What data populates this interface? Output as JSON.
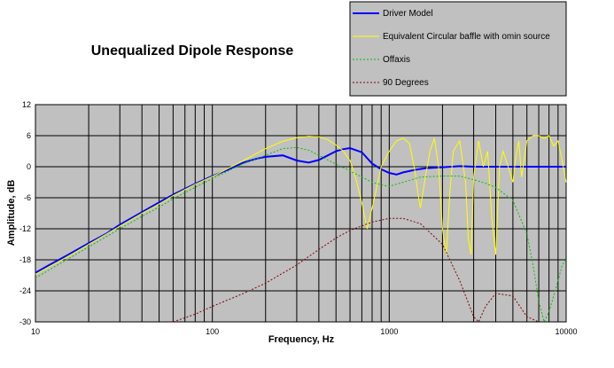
{
  "chart_data": {
    "type": "line",
    "title": "Unequalized Dipole Response",
    "xlabel": "Frequency, Hz",
    "ylabel": "Amplitude, dB",
    "xscale": "log",
    "xlim": [
      10,
      10000
    ],
    "ylim": [
      -30,
      12
    ],
    "x_ticks": [
      10,
      100,
      1000,
      10000
    ],
    "x_tick_labels": [
      "10",
      "100",
      "1000",
      "10000"
    ],
    "y_ticks": [
      12,
      6,
      0,
      -6,
      -12,
      -18,
      -24,
      -30
    ],
    "y_tick_labels": [
      "12",
      "6",
      "0",
      "-6",
      "-12",
      "-18",
      "-24",
      "-30"
    ],
    "grid": true,
    "legend_position": "top-right",
    "background": "#c0c0c0",
    "series": [
      {
        "name": "Driver Model",
        "color": "#0000ff",
        "style": "solid",
        "points": [
          [
            10,
            -20.5
          ],
          [
            12,
            -19
          ],
          [
            15,
            -17.2
          ],
          [
            20,
            -14.8
          ],
          [
            25,
            -13
          ],
          [
            30,
            -11.2
          ],
          [
            40,
            -8.8
          ],
          [
            50,
            -6.9
          ],
          [
            60,
            -5.4
          ],
          [
            80,
            -3.3
          ],
          [
            100,
            -1.8
          ],
          [
            120,
            -0.7
          ],
          [
            150,
            0.8
          ],
          [
            180,
            1.6
          ],
          [
            200,
            1.9
          ],
          [
            250,
            2.2
          ],
          [
            300,
            1.2
          ],
          [
            350,
            0.8
          ],
          [
            400,
            1.3
          ],
          [
            450,
            2.2
          ],
          [
            500,
            3
          ],
          [
            550,
            3.4
          ],
          [
            600,
            3.6
          ],
          [
            700,
            2.8
          ],
          [
            800,
            0.6
          ],
          [
            900,
            -0.5
          ],
          [
            1000,
            -1.2
          ],
          [
            1100,
            -1.5
          ],
          [
            1200,
            -1.1
          ],
          [
            1400,
            -0.6
          ],
          [
            1600,
            -0.3
          ],
          [
            2000,
            -0.1
          ],
          [
            2500,
            0.1
          ],
          [
            3000,
            0
          ],
          [
            4000,
            0
          ],
          [
            5000,
            0
          ],
          [
            6000,
            0
          ],
          [
            8000,
            0
          ],
          [
            10000,
            0
          ]
        ]
      },
      {
        "name": "Equivalent Circular baffle with omin source",
        "color": "#ffff00",
        "style": "solid",
        "points": [
          [
            10,
            -20.8
          ],
          [
            15,
            -17.5
          ],
          [
            20,
            -15
          ],
          [
            30,
            -11.5
          ],
          [
            40,
            -9
          ],
          [
            50,
            -7.2
          ],
          [
            60,
            -5.6
          ],
          [
            80,
            -3.4
          ],
          [
            100,
            -1.9
          ],
          [
            150,
            1.2
          ],
          [
            200,
            3.5
          ],
          [
            250,
            4.9
          ],
          [
            300,
            5.6
          ],
          [
            350,
            5.9
          ],
          [
            400,
            5.8
          ],
          [
            450,
            5.2
          ],
          [
            500,
            4.2
          ],
          [
            550,
            3
          ],
          [
            600,
            1.2
          ],
          [
            650,
            -2.5
          ],
          [
            700,
            -7
          ],
          [
            750,
            -12
          ],
          [
            800,
            -8
          ],
          [
            850,
            -4
          ],
          [
            900,
            0
          ],
          [
            1000,
            3
          ],
          [
            1100,
            5
          ],
          [
            1200,
            5.5
          ],
          [
            1300,
            4.5
          ],
          [
            1400,
            -1
          ],
          [
            1450,
            -5
          ],
          [
            1500,
            -8
          ],
          [
            1600,
            -2
          ],
          [
            1700,
            3
          ],
          [
            1800,
            5.5
          ],
          [
            1900,
            0
          ],
          [
            2000,
            -12
          ],
          [
            2100,
            -17
          ],
          [
            2200,
            -5
          ],
          [
            2300,
            3
          ],
          [
            2500,
            5
          ],
          [
            2700,
            -3
          ],
          [
            2800,
            -14
          ],
          [
            2900,
            -17
          ],
          [
            3000,
            -2
          ],
          [
            3200,
            5
          ],
          [
            3400,
            0
          ],
          [
            3600,
            3
          ],
          [
            3800,
            -10
          ],
          [
            4000,
            -17
          ],
          [
            4200,
            0
          ],
          [
            4400,
            3
          ],
          [
            4700,
            0
          ],
          [
            5000,
            -3
          ],
          [
            5200,
            2
          ],
          [
            5400,
            5
          ],
          [
            5600,
            -2
          ],
          [
            6000,
            5
          ],
          [
            6500,
            6
          ],
          [
            7000,
            6
          ],
          [
            7500,
            5.5
          ],
          [
            8000,
            6
          ],
          [
            8500,
            4
          ],
          [
            9000,
            5
          ],
          [
            9500,
            1
          ],
          [
            10000,
            -3
          ]
        ]
      },
      {
        "name": "Offaxis",
        "color": "#00c000",
        "style": "dotted",
        "points": [
          [
            10,
            -21.5
          ],
          [
            15,
            -18
          ],
          [
            20,
            -15.5
          ],
          [
            30,
            -12
          ],
          [
            40,
            -9.6
          ],
          [
            50,
            -7.8
          ],
          [
            60,
            -6.2
          ],
          [
            80,
            -4
          ],
          [
            100,
            -2.3
          ],
          [
            150,
            0.6
          ],
          [
            200,
            2.2
          ],
          [
            250,
            3.5
          ],
          [
            300,
            3.7
          ],
          [
            350,
            3.2
          ],
          [
            400,
            2.2
          ],
          [
            500,
            0.5
          ],
          [
            600,
            -0.8
          ],
          [
            700,
            -2
          ],
          [
            800,
            -3
          ],
          [
            900,
            -3.5
          ],
          [
            1000,
            -3.8
          ],
          [
            1200,
            -3
          ],
          [
            1500,
            -2
          ],
          [
            2000,
            -1.8
          ],
          [
            2500,
            -1.8
          ],
          [
            3000,
            -2.5
          ],
          [
            3500,
            -3.2
          ],
          [
            4000,
            -4
          ],
          [
            5000,
            -6.5
          ],
          [
            6000,
            -13
          ],
          [
            6500,
            -19
          ],
          [
            7000,
            -26
          ],
          [
            7500,
            -30
          ],
          [
            8000,
            -28
          ],
          [
            8500,
            -25
          ],
          [
            9000,
            -22
          ],
          [
            9500,
            -19
          ],
          [
            10000,
            -18
          ]
        ]
      },
      {
        "name": "90 Degrees",
        "color": "#800000",
        "style": "dotted",
        "points": [
          [
            60,
            -30
          ],
          [
            80,
            -28.5
          ],
          [
            100,
            -27
          ],
          [
            150,
            -24.5
          ],
          [
            200,
            -22.5
          ],
          [
            300,
            -19
          ],
          [
            400,
            -16
          ],
          [
            500,
            -13.8
          ],
          [
            600,
            -12.3
          ],
          [
            800,
            -10.7
          ],
          [
            1000,
            -10
          ],
          [
            1200,
            -10
          ],
          [
            1500,
            -11
          ],
          [
            2000,
            -15
          ],
          [
            2500,
            -22
          ],
          [
            3000,
            -29
          ],
          [
            3200,
            -30
          ],
          [
            3500,
            -27
          ],
          [
            4000,
            -24.5
          ],
          [
            5000,
            -25
          ],
          [
            6000,
            -29
          ],
          [
            7000,
            -30
          ]
        ]
      }
    ]
  }
}
